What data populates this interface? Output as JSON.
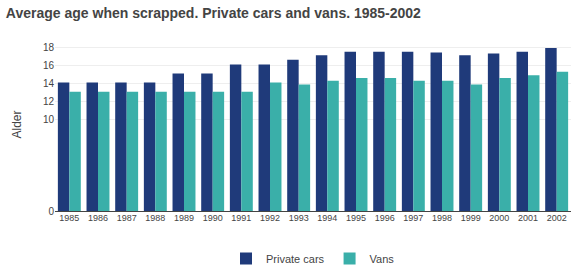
{
  "chart_data": {
    "type": "bar",
    "title": "Average age when scrapped. Private cars and vans. 1985-2002",
    "ylabel": "Alder",
    "categories": [
      "1985",
      "1986",
      "1987",
      "1988",
      "1989",
      "1990",
      "1991",
      "1992",
      "1993",
      "1994",
      "1995",
      "1996",
      "1997",
      "1998",
      "1999",
      "2000",
      "2001",
      "2002"
    ],
    "series": [
      {
        "name": "Private cars",
        "color": "#1F3A7A",
        "values": [
          14.1,
          14.1,
          14.1,
          14.1,
          15.1,
          15.1,
          16.1,
          16.1,
          16.6,
          17.1,
          17.5,
          17.5,
          17.5,
          17.4,
          17.1,
          17.3,
          17.5,
          17.9
        ]
      },
      {
        "name": "Vans",
        "color": "#3AAFA9",
        "values": [
          13.1,
          13.1,
          13.1,
          13.1,
          13.1,
          13.1,
          13.1,
          14.1,
          13.9,
          14.3,
          14.6,
          14.6,
          14.3,
          14.3,
          13.9,
          14.6,
          14.9,
          15.3
        ]
      }
    ],
    "ylim": [
      0,
      19
    ],
    "yticks": [
      0,
      10,
      12,
      14,
      16,
      18
    ],
    "grid": true,
    "legend": "bottom"
  }
}
